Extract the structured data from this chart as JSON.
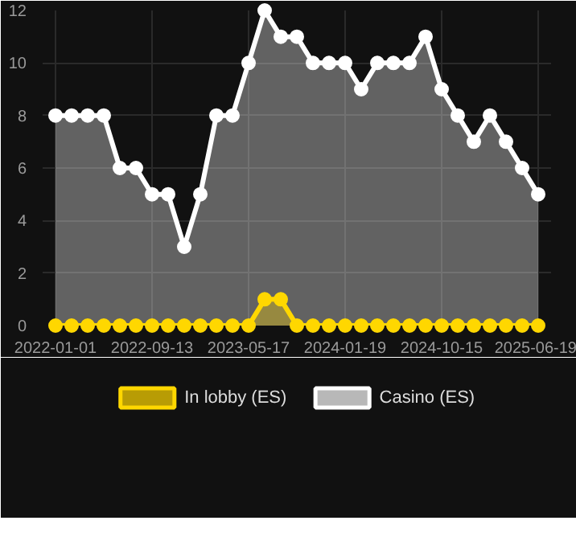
{
  "chart_data": {
    "type": "area",
    "categories": [
      "2022-01-01",
      null,
      null,
      null,
      null,
      null,
      "2022-09-13",
      null,
      null,
      null,
      null,
      null,
      "2023-05-17",
      null,
      null,
      null,
      null,
      null,
      "2024-01-19",
      null,
      null,
      null,
      null,
      null,
      "2024-10-15",
      null,
      null,
      null,
      null,
      null,
      "2025-06-19"
    ],
    "series": [
      {
        "name": "In lobby (ES)",
        "color": "#ffd700",
        "values": [
          0,
          0,
          0,
          0,
          0,
          0,
          0,
          0,
          0,
          0,
          0,
          0,
          0,
          1,
          1,
          0,
          0,
          0,
          0,
          0,
          0,
          0,
          0,
          0,
          0,
          0,
          0,
          0,
          0,
          0,
          0
        ]
      },
      {
        "name": "Casino (ES)",
        "color": "#ffffff",
        "values": [
          8,
          8,
          8,
          8,
          6,
          6,
          5,
          5,
          3,
          5,
          8,
          8,
          10,
          12,
          11,
          11,
          10,
          10,
          10,
          9,
          10,
          10,
          10,
          11,
          9,
          8,
          7,
          8,
          7,
          6,
          5
        ]
      }
    ],
    "ylim": [
      0,
      12
    ],
    "yticks": [
      0,
      2,
      4,
      6,
      8,
      10,
      12
    ],
    "grid": true,
    "legend": "bottom",
    "marker": "circle",
    "line_style": "solid"
  }
}
